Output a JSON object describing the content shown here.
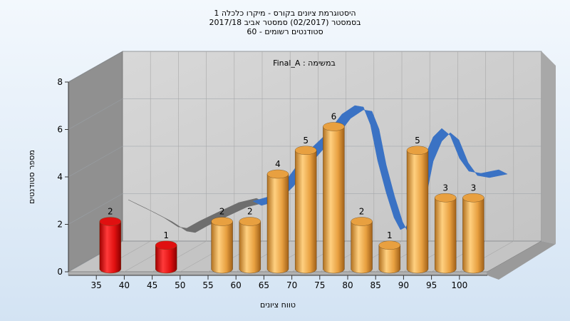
{
  "title_lines": [
    "היסטוגרמת ציונים בקורס - מיקרו כלכלה 1",
    "בסמסטר  (02/2017)  סמסטר אביב 2017/18",
    "סטודנטים רשומים - 60"
  ],
  "chart_data": {
    "type": "bar",
    "annotation": "במשימה : Final_A",
    "xlabel": "טווח ציונים",
    "ylabel": "מספר סטודנטים",
    "x_ticks": [
      35,
      40,
      45,
      50,
      55,
      60,
      65,
      70,
      75,
      80,
      85,
      90,
      95,
      100
    ],
    "y_ticks": [
      0,
      2,
      4,
      6,
      8
    ],
    "ylim": [
      0,
      8
    ],
    "categories": [
      37.5,
      47.5,
      57.5,
      62.5,
      67.5,
      72.5,
      77.5,
      82.5,
      87.5,
      92.5,
      97.5,
      102.5
    ],
    "values": [
      2,
      1,
      2,
      2,
      4,
      5,
      6,
      2,
      1,
      5,
      3,
      3
    ],
    "bar_colors": [
      "#e01010",
      "#e01010",
      "#e8a040",
      "#e8a040",
      "#e8a040",
      "#e8a040",
      "#e8a040",
      "#e8a040",
      "#e8a040",
      "#e8a040",
      "#e8a040",
      "#e8a040"
    ],
    "failing_color": "#e01010",
    "passing_color": "#e8a040",
    "curve_colors": {
      "failing": "#6e6e6e",
      "passing": "#3a72c4"
    },
    "grid": true
  }
}
